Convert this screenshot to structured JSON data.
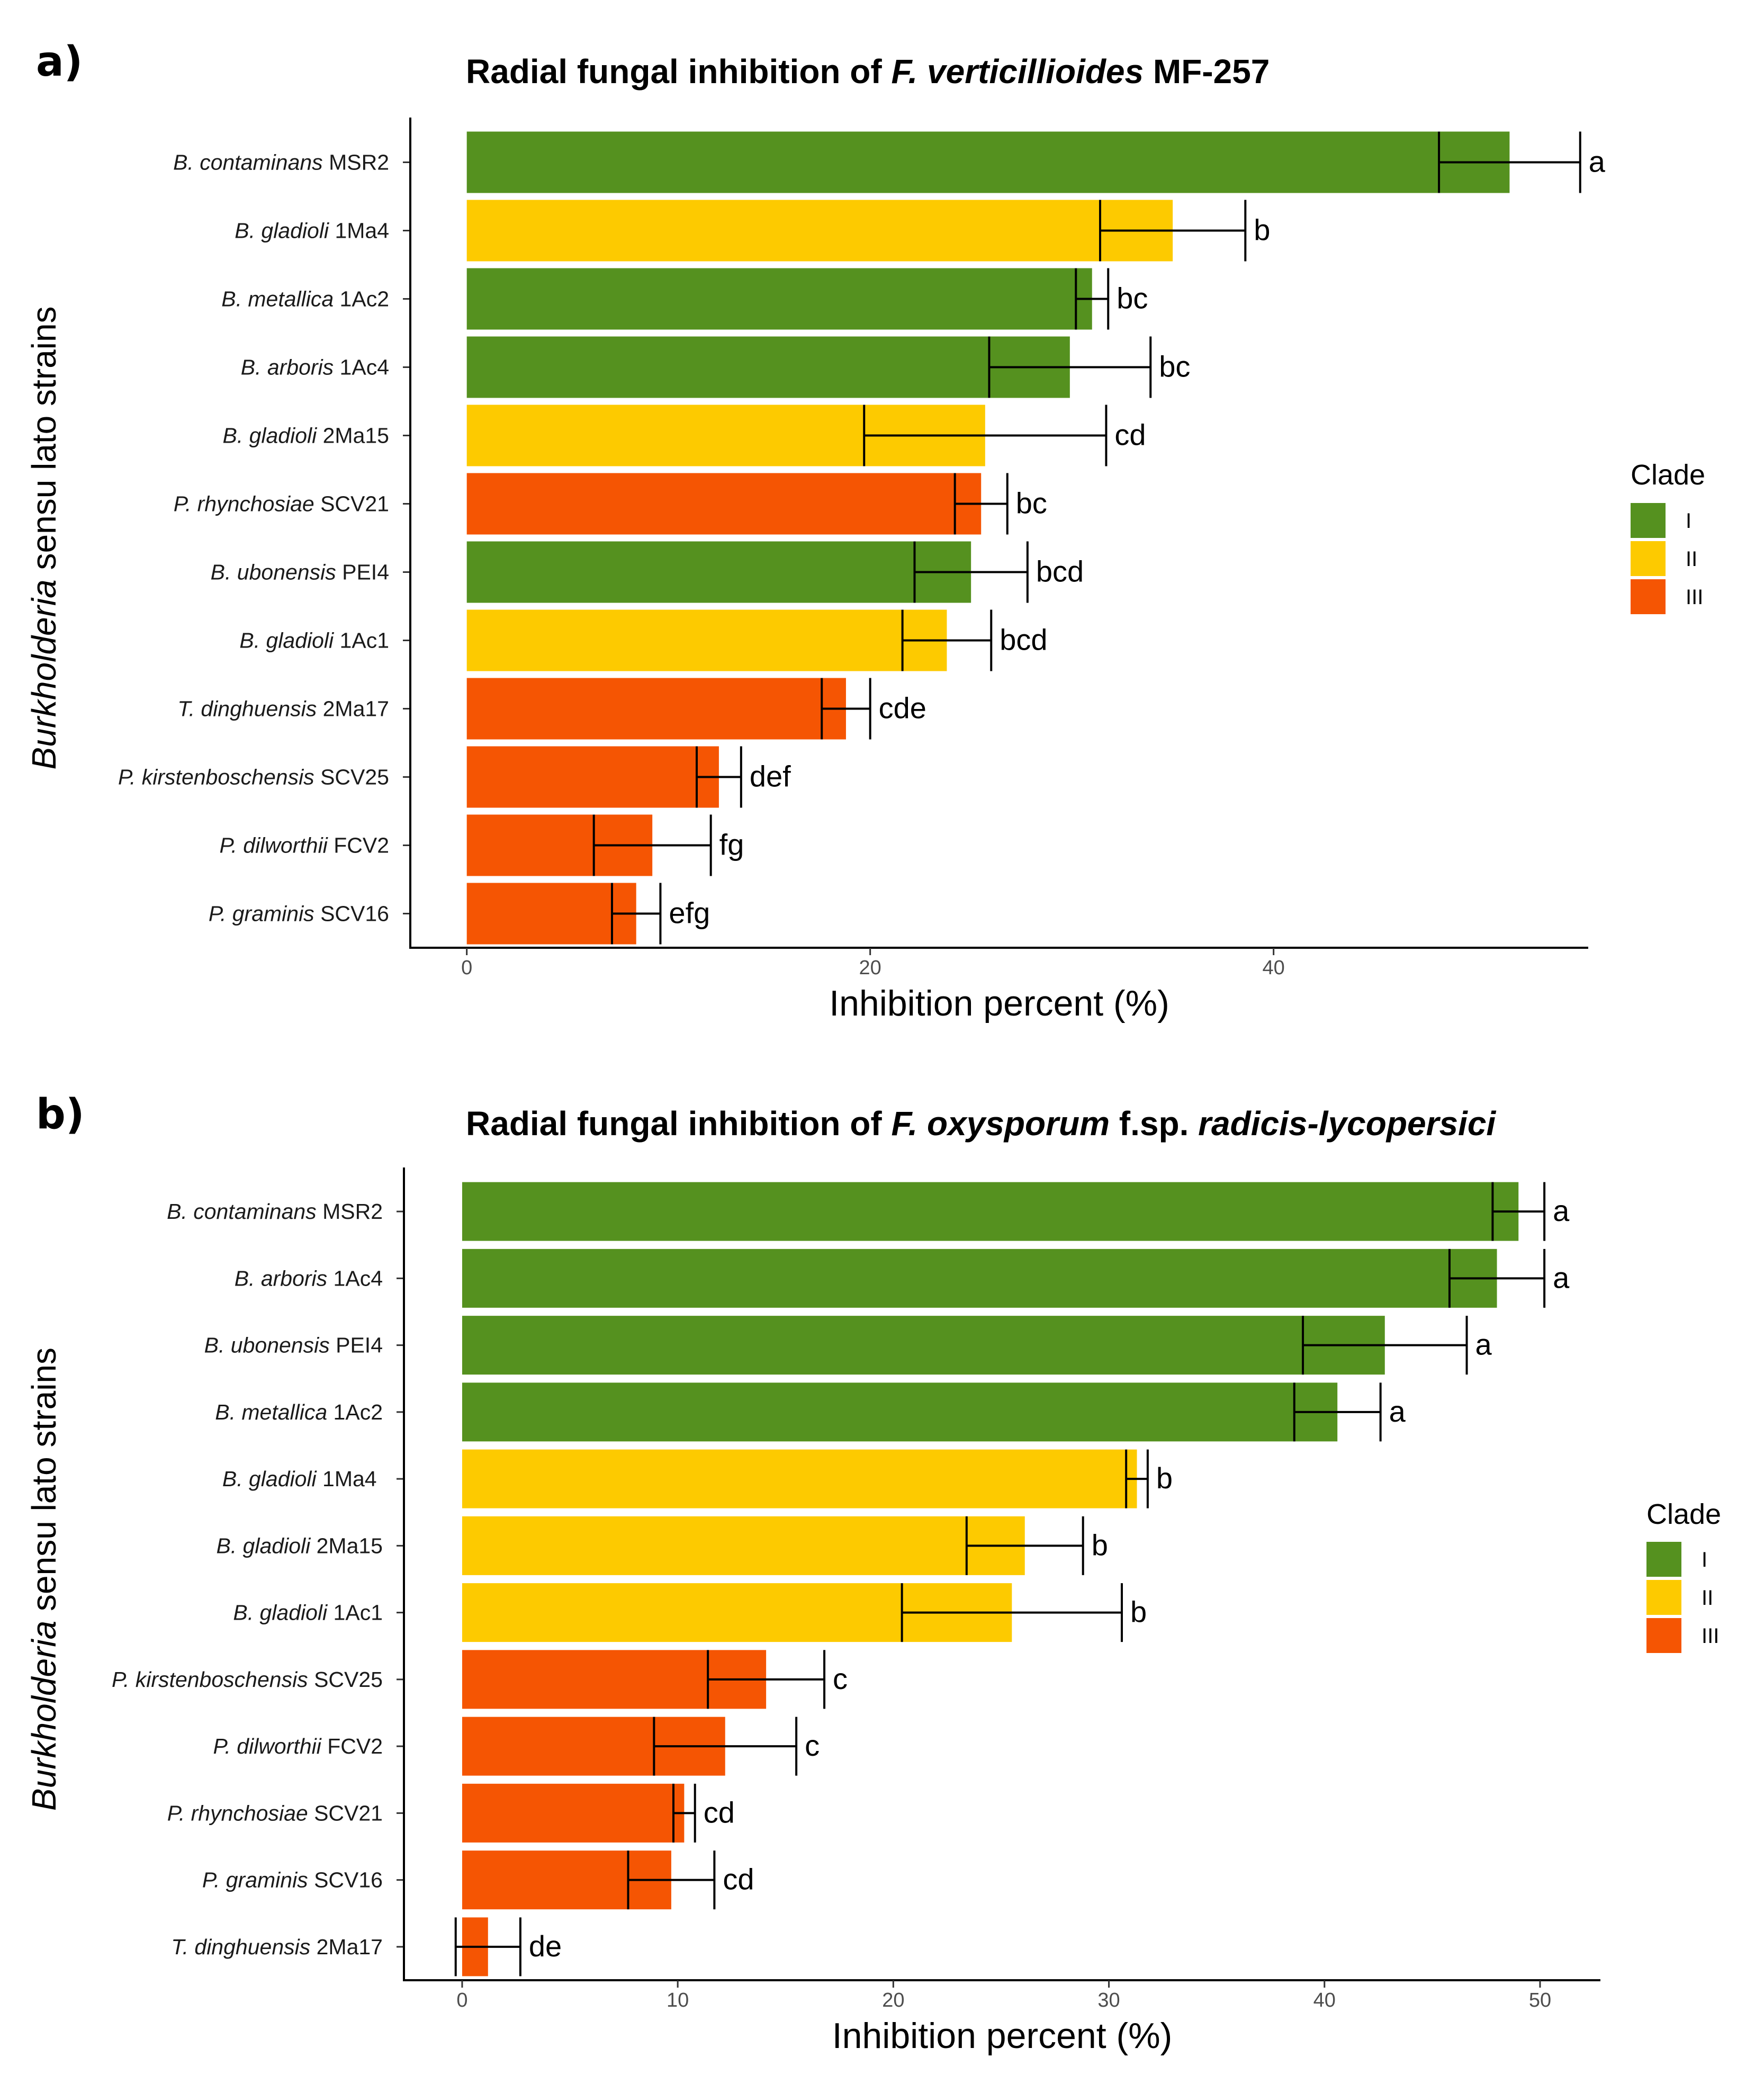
{
  "colors": {
    "I": "#55911f",
    "II": "#fdca00",
    "III": "#f55503"
  },
  "legend": {
    "title": "Clade",
    "items": [
      "I",
      "II",
      "III"
    ]
  },
  "panels": [
    {
      "label": "a)",
      "title": {
        "prefix": "Radial fungal inhibition of ",
        "species": "F. verticillioides",
        "suffix": " MF-257"
      },
      "ylabel_italic": "Burkholderia",
      "ylabel_rest": " sensu lato strains"
    },
    {
      "label": "b)",
      "title": {
        "prefix": "Radial fungal inhibition of ",
        "species": "F. oxysporum",
        "mid": " f.sp. ",
        "forma": "radicis-lycopersici"
      },
      "ylabel_italic": "Burkholderia",
      "ylabel_rest": " sensu lato strains"
    }
  ],
  "chart_data": [
    {
      "type": "bar",
      "orientation": "horizontal",
      "title": "Radial fungal inhibition of F. verticillioides MF-257",
      "xlabel": "Inhibition percent (%)",
      "ylabel": "Burkholderia sensu lato strains",
      "xlim": [
        -2.8,
        55.6
      ],
      "xticks": [
        0,
        20,
        40
      ],
      "legend": "right",
      "bars": [
        {
          "italic": "B. contaminans",
          "strain": " MSR2",
          "clade": "I",
          "value": 51.7,
          "err_low": 48.2,
          "err_high": 55.2,
          "letter": "a"
        },
        {
          "italic": "B. gladioli",
          "strain": " 1Ma4",
          "clade": "II",
          "value": 35.0,
          "err_low": 31.4,
          "err_high": 38.6,
          "letter": "b"
        },
        {
          "italic": "B. metallica",
          "strain": " 1Ac2",
          "clade": "I",
          "value": 31.0,
          "err_low": 30.2,
          "err_high": 31.8,
          "letter": "bc"
        },
        {
          "italic": "B. arboris",
          "strain": " 1Ac4",
          "clade": "I",
          "value": 29.9,
          "err_low": 25.9,
          "err_high": 33.9,
          "letter": "bc"
        },
        {
          "italic": "B. gladioli",
          "strain": " 2Ma15",
          "clade": "II",
          "value": 25.7,
          "err_low": 19.7,
          "err_high": 31.7,
          "letter": "cd"
        },
        {
          "italic": "P. rhynchosiae",
          "strain": " SCV21",
          "clade": "III",
          "value": 25.5,
          "err_low": 24.2,
          "err_high": 26.8,
          "letter": "bc"
        },
        {
          "italic": "B. ubonensis",
          "strain": " PEI4",
          "clade": "I",
          "value": 25.0,
          "err_low": 22.2,
          "err_high": 27.8,
          "letter": "bcd"
        },
        {
          "italic": "B. gladioli",
          "strain": " 1Ac1",
          "clade": "II",
          "value": 23.8,
          "err_low": 21.6,
          "err_high": 26.0,
          "letter": "bcd"
        },
        {
          "italic": "T. dinghuensis",
          "strain": " 2Ma17",
          "clade": "III",
          "value": 18.8,
          "err_low": 17.6,
          "err_high": 20.0,
          "letter": "cde"
        },
        {
          "italic": "P. kirstenboschensis",
          "strain": " SCV25",
          "clade": "III",
          "value": 12.5,
          "err_low": 11.4,
          "err_high": 13.6,
          "letter": "def"
        },
        {
          "italic": "P. dilworthii",
          "strain": " FCV2",
          "clade": "III",
          "value": 9.2,
          "err_low": 6.3,
          "err_high": 12.1,
          "letter": "fg"
        },
        {
          "italic": "P. graminis",
          "strain": " SCV16",
          "clade": "III",
          "value": 8.4,
          "err_low": 7.2,
          "err_high": 9.6,
          "letter": "efg"
        }
      ]
    },
    {
      "type": "bar",
      "orientation": "horizontal",
      "title": "Radial fungal inhibition of F. oxysporum f.sp. radicis-lycopersici",
      "xlabel": "Inhibition percent (%)",
      "ylabel": "Burkholderia sensu lato strains",
      "xlim": [
        -2.7,
        52.8
      ],
      "xticks": [
        0,
        10,
        20,
        30,
        40,
        50
      ],
      "legend": "right",
      "bars": [
        {
          "italic": "B. contaminans",
          "strain": " MSR2",
          "clade": "I",
          "value": 49.0,
          "err_low": 47.8,
          "err_high": 50.2,
          "letter": "a"
        },
        {
          "italic": "B. arboris",
          "strain": " 1Ac4",
          "clade": "I",
          "value": 48.0,
          "err_low": 45.8,
          "err_high": 50.2,
          "letter": "a"
        },
        {
          "italic": "B. ubonensis",
          "strain": " PEI4",
          "clade": "I",
          "value": 42.8,
          "err_low": 39.0,
          "err_high": 46.6,
          "letter": "a"
        },
        {
          "italic": "B. metallica",
          "strain": " 1Ac2",
          "clade": "I",
          "value": 40.6,
          "err_low": 38.6,
          "err_high": 42.6,
          "letter": "a"
        },
        {
          "italic": "B. gladioli",
          "strain": " 1Ma4 ",
          "clade": "II",
          "value": 31.3,
          "err_low": 30.8,
          "err_high": 31.8,
          "letter": "b"
        },
        {
          "italic": "B. gladioli",
          "strain": " 2Ma15",
          "clade": "II",
          "value": 26.1,
          "err_low": 23.4,
          "err_high": 28.8,
          "letter": "b"
        },
        {
          "italic": "B. gladioli",
          "strain": " 1Ac1",
          "clade": "II",
          "value": 25.5,
          "err_low": 20.4,
          "err_high": 30.6,
          "letter": "b"
        },
        {
          "italic": "P. kirstenboschensis",
          "strain": " SCV25",
          "clade": "III",
          "value": 14.1,
          "err_low": 11.4,
          "err_high": 16.8,
          "letter": "c"
        },
        {
          "italic": "P. dilworthii",
          "strain": " FCV2",
          "clade": "III",
          "value": 12.2,
          "err_low": 8.9,
          "err_high": 15.5,
          "letter": "c"
        },
        {
          "italic": "P. rhynchosiae",
          "strain": " SCV21",
          "clade": "III",
          "value": 10.3,
          "err_low": 9.8,
          "err_high": 10.8,
          "letter": "cd"
        },
        {
          "italic": "P. graminis",
          "strain": " SCV16",
          "clade": "III",
          "value": 9.7,
          "err_low": 7.7,
          "err_high": 11.7,
          "letter": "cd"
        },
        {
          "italic": "T. dinghuensis",
          "strain": " 2Ma17",
          "clade": "III",
          "value": 1.2,
          "err_low": -0.3,
          "err_high": 2.7,
          "letter": "de"
        }
      ]
    }
  ]
}
